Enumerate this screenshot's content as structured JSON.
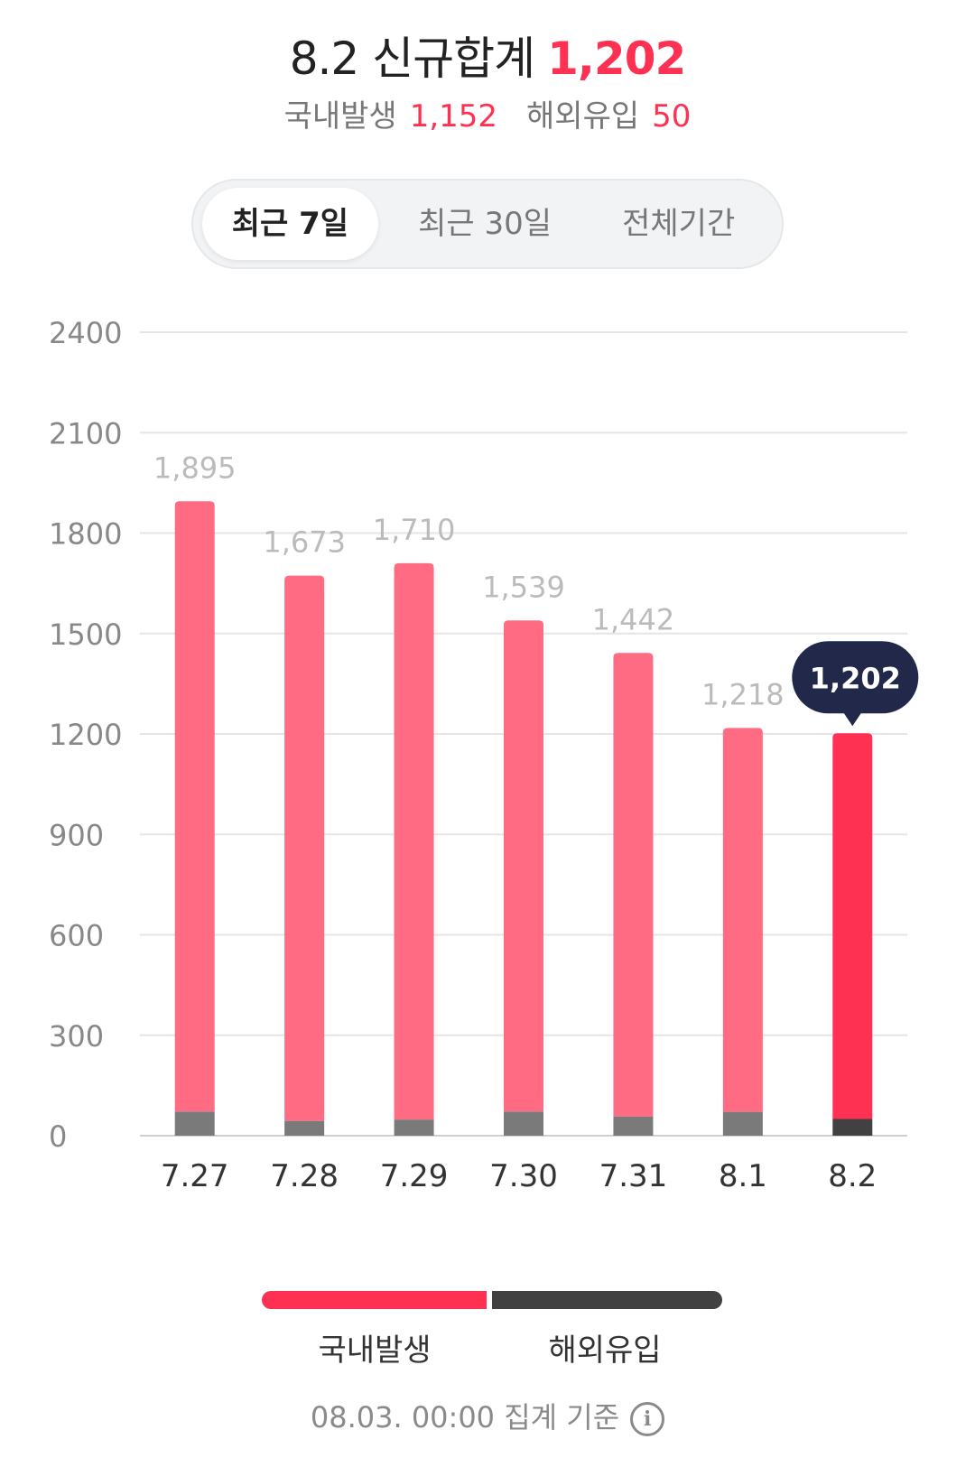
{
  "header": {
    "title_date": "8.2 신규합계",
    "title_total": "1,202",
    "domestic_label": "국내발생",
    "domestic_value": "1,152",
    "overseas_label": "해외유입",
    "overseas_value": "50"
  },
  "tabs": [
    {
      "label": "최근 7일",
      "active": true
    },
    {
      "label": "최근 30일",
      "active": false
    },
    {
      "label": "전체기간",
      "active": false
    }
  ],
  "colors": {
    "domestic": "#ff6b83",
    "domestic_selected": "#ff3152",
    "overseas": "#7a7a7a",
    "overseas_selected": "#414141",
    "tooltip": "#22284a",
    "grid": "#e5e5e5"
  },
  "chart_data": {
    "type": "bar",
    "stacked": true,
    "categories": [
      "7.27",
      "7.28",
      "7.29",
      "7.30",
      "7.31",
      "8.1",
      "8.2"
    ],
    "totals": [
      1895,
      1673,
      1710,
      1539,
      1442,
      1218,
      1202
    ],
    "total_labels": [
      "1,895",
      "1,673",
      "1,710",
      "1,539",
      "1,442",
      "1,218",
      "1,202"
    ],
    "series": [
      {
        "name": "국내발생",
        "values": [
          1823,
          1629,
          1662,
          1467,
          1385,
          1147,
          1152
        ]
      },
      {
        "name": "해외유입",
        "values": [
          72,
          44,
          48,
          72,
          57,
          71,
          50
        ]
      }
    ],
    "y_ticks": [
      0,
      300,
      600,
      900,
      1200,
      1500,
      1800,
      2100,
      2400
    ],
    "ylim": [
      0,
      2400
    ],
    "selected_index": 6,
    "tooltip": "1,202",
    "grid": true,
    "legend_position": "bottom"
  },
  "legend": {
    "domestic_label": "국내발생",
    "overseas_label": "해외유입"
  },
  "footer": {
    "text": "08.03. 00:00 집계 기준",
    "icon": "info-icon"
  }
}
